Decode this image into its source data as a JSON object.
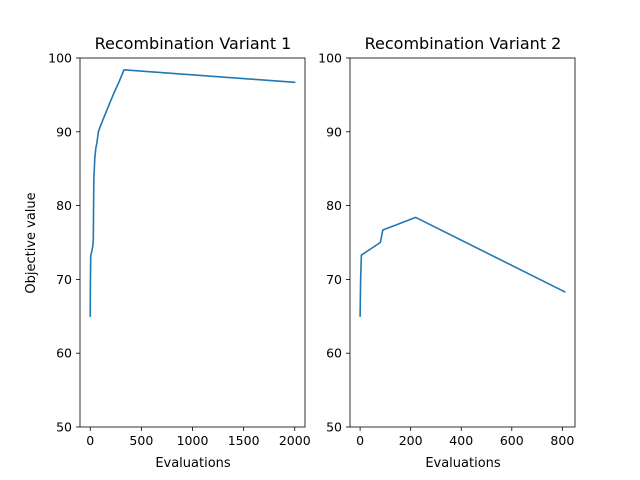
{
  "chart_data": [
    {
      "type": "line",
      "title": "Recombination Variant 1",
      "xlabel": "Evaluations",
      "ylabel": "Objective value",
      "xlim": [
        -100,
        2100
      ],
      "ylim": [
        50,
        100
      ],
      "xticks": [
        0,
        500,
        1000,
        1500,
        2000
      ],
      "yticks": [
        50,
        60,
        70,
        80,
        90,
        100
      ],
      "grid": false,
      "line_color": "#1f77b4",
      "x": [
        0,
        2,
        5,
        15,
        25,
        30,
        35,
        45,
        55,
        65,
        80,
        100,
        150,
        200,
        240,
        280,
        330,
        2000
      ],
      "y": [
        65.0,
        70.0,
        73.2,
        73.8,
        74.5,
        75.3,
        83.5,
        86.5,
        87.8,
        88.5,
        90.0,
        90.8,
        92.5,
        94.2,
        95.5,
        96.7,
        98.4,
        96.7
      ]
    },
    {
      "type": "line",
      "title": "Recombination Variant 2",
      "xlabel": "Evaluations",
      "ylabel": "",
      "xlim": [
        -40,
        850
      ],
      "ylim": [
        50,
        100
      ],
      "xticks": [
        0,
        200,
        400,
        600,
        800
      ],
      "yticks": [
        50,
        60,
        70,
        80,
        90,
        100
      ],
      "grid": false,
      "line_color": "#1f77b4",
      "x": [
        0,
        2,
        5,
        80,
        90,
        220,
        810
      ],
      "y": [
        65.0,
        70.0,
        73.3,
        75.0,
        76.7,
        78.4,
        68.3
      ]
    }
  ]
}
